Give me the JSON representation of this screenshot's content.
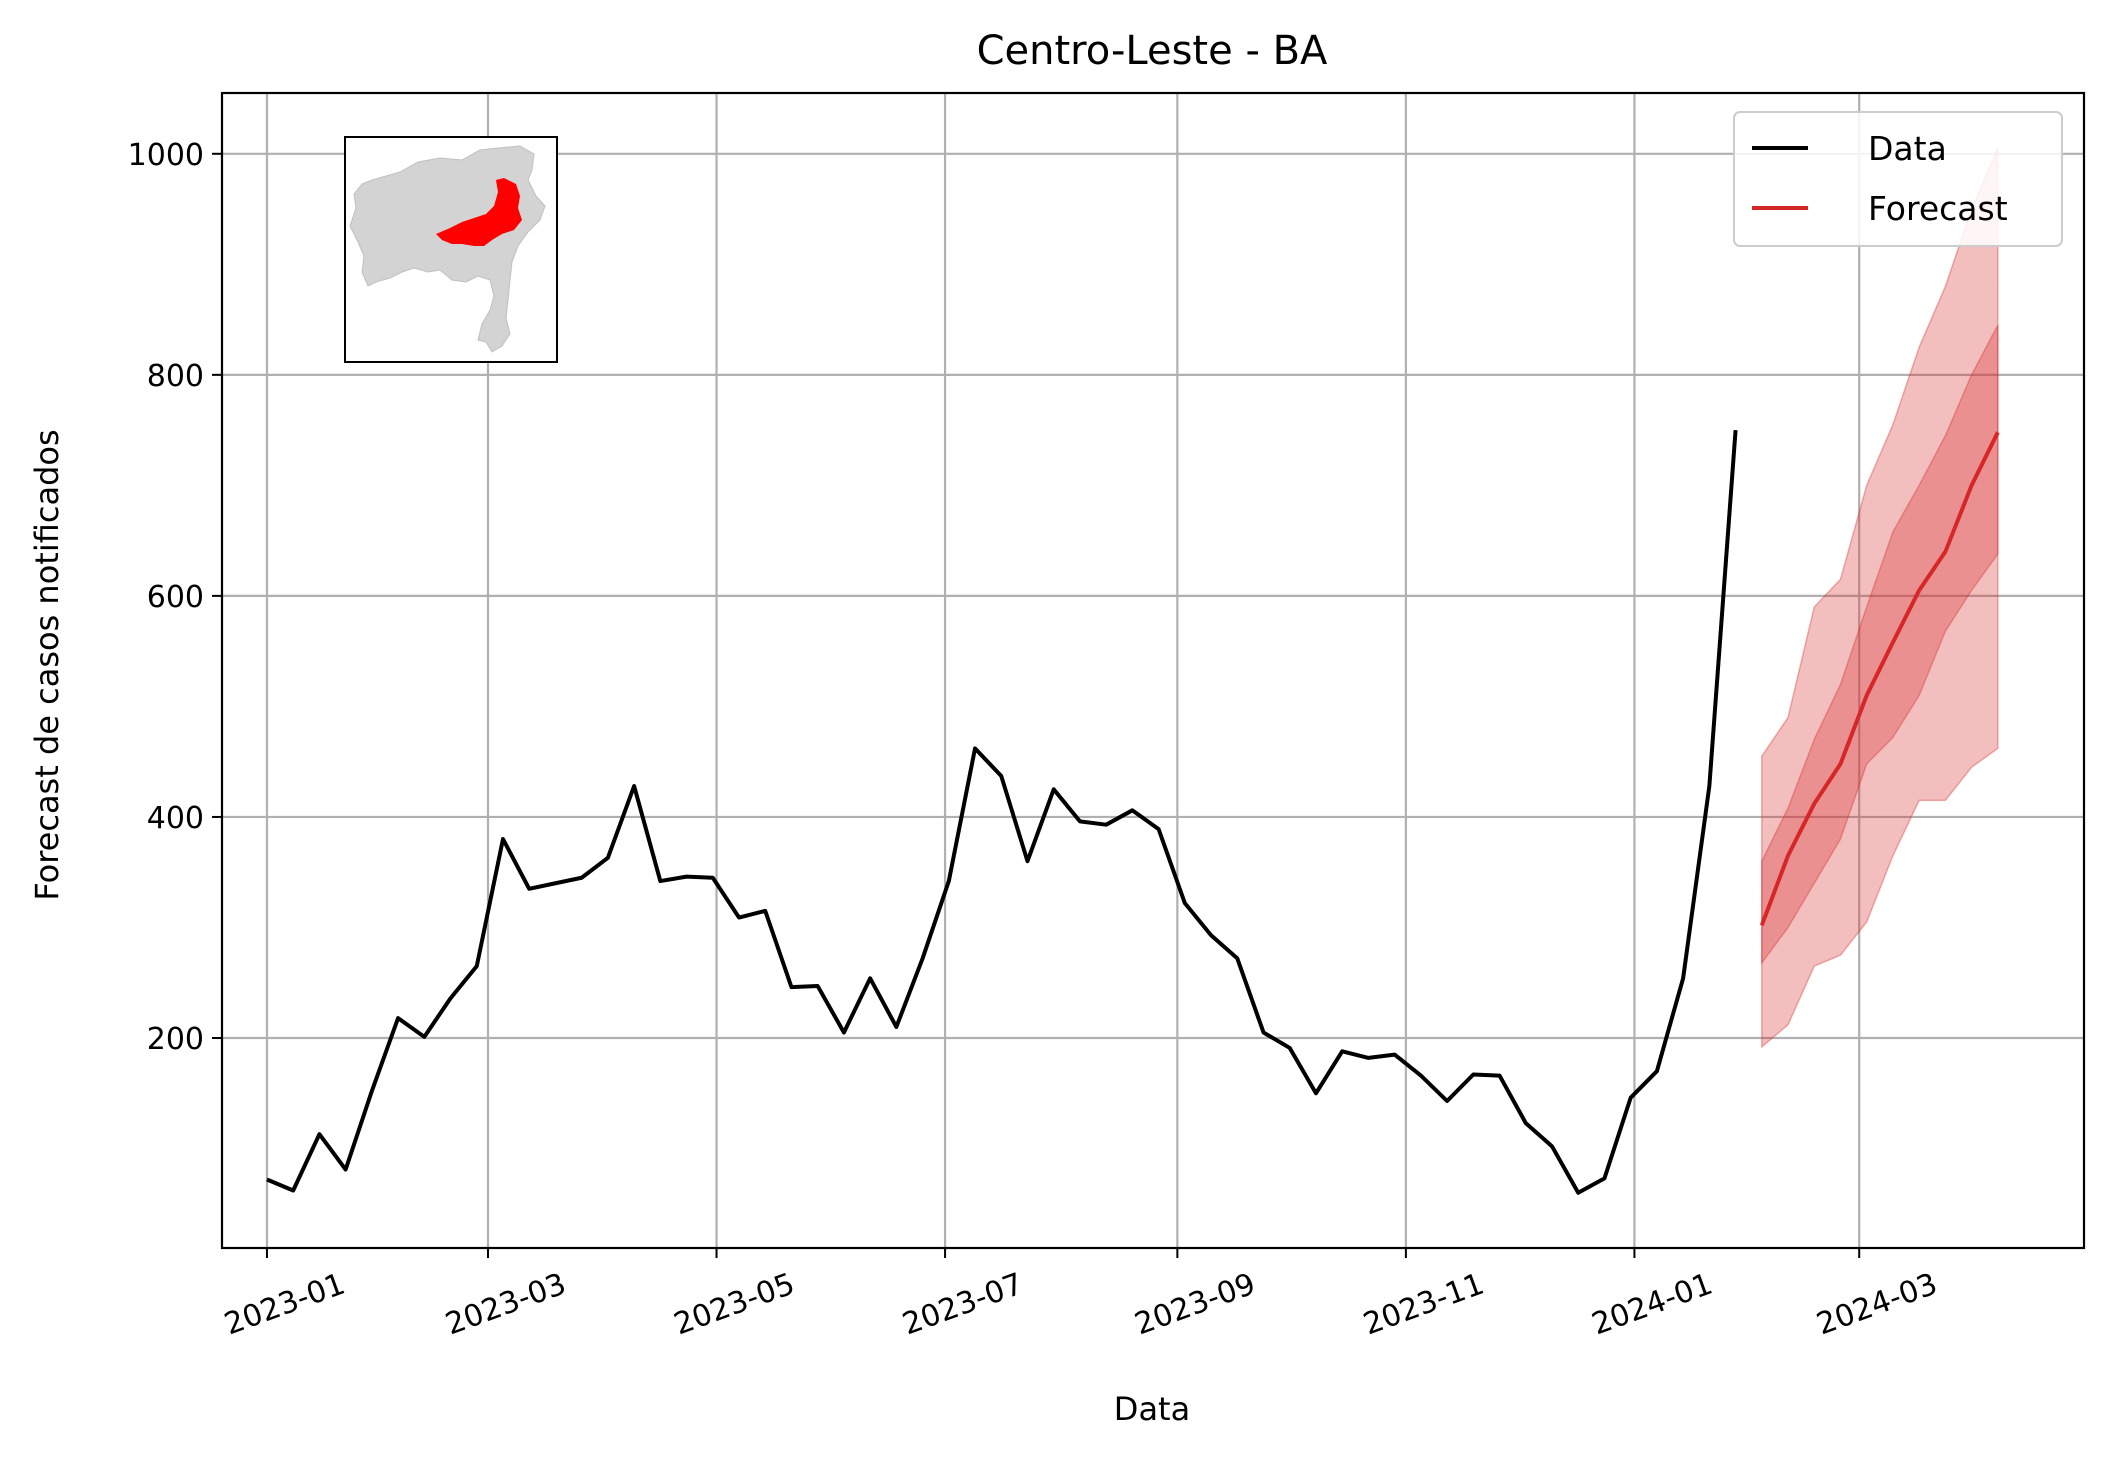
{
  "chart_data": {
    "type": "line",
    "title": "Centro-Leste - BA",
    "xlabel": "Data",
    "ylabel": "Forecast de casos notificados",
    "ylim": [
      10,
      1055
    ],
    "xlim": [
      "2022-12-20",
      "2024-04-30"
    ],
    "grid": true,
    "legend_position": "top-right",
    "x_ticks": [
      "2023-01-01",
      "2023-03-01",
      "2023-05-01",
      "2023-07-01",
      "2023-09-01",
      "2023-11-01",
      "2024-01-01",
      "2024-03-01"
    ],
    "x_tick_labels": [
      "2023-01",
      "2023-03",
      "2023-05",
      "2023-07",
      "2023-09",
      "2023-11",
      "2024-01",
      "2024-03"
    ],
    "y_ticks": [
      200,
      400,
      600,
      800,
      1000
    ],
    "y_tick_labels": [
      "200",
      "400",
      "600",
      "800",
      "1000"
    ],
    "series": [
      {
        "name": "Data",
        "color": "#000000",
        "x": [
          "2023-01-01",
          "2023-01-08",
          "2023-01-15",
          "2023-01-22",
          "2023-01-29",
          "2023-02-05",
          "2023-02-12",
          "2023-02-19",
          "2023-02-26",
          "2023-03-05",
          "2023-03-12",
          "2023-03-19",
          "2023-03-26",
          "2023-04-02",
          "2023-04-09",
          "2023-04-16",
          "2023-04-23",
          "2023-04-30",
          "2023-05-07",
          "2023-05-14",
          "2023-05-21",
          "2023-05-28",
          "2023-06-04",
          "2023-06-11",
          "2023-06-18",
          "2023-06-25",
          "2023-07-02",
          "2023-07-09",
          "2023-07-16",
          "2023-07-23",
          "2023-07-30",
          "2023-08-06",
          "2023-08-13",
          "2023-08-20",
          "2023-08-27",
          "2023-09-03",
          "2023-09-10",
          "2023-09-17",
          "2023-09-24",
          "2023-10-01",
          "2023-10-08",
          "2023-10-15",
          "2023-10-22",
          "2023-10-29",
          "2023-11-05",
          "2023-11-12",
          "2023-11-19",
          "2023-11-26",
          "2023-12-03",
          "2023-12-10",
          "2023-12-17",
          "2023-12-24",
          "2023-12-31",
          "2024-01-07",
          "2024-01-14",
          "2024-01-21",
          "2024-01-28"
        ],
        "y": [
          72,
          62,
          113,
          81,
          152,
          218,
          201,
          236,
          265,
          380,
          335,
          340,
          345,
          363,
          428,
          342,
          346,
          345,
          309,
          315,
          246,
          247,
          205,
          254,
          210,
          272,
          342,
          462,
          437,
          360,
          425,
          396,
          393,
          406,
          389,
          322,
          293,
          272,
          205,
          191,
          150,
          188,
          182,
          185,
          166,
          143,
          167,
          166,
          123,
          102,
          60,
          73,
          146,
          170,
          254,
          428,
          750
        ]
      },
      {
        "name": "Forecast",
        "color": "#d62728",
        "x": [
          "2024-02-04",
          "2024-02-11",
          "2024-02-18",
          "2024-02-25",
          "2024-03-03",
          "2024-03-10",
          "2024-03-17",
          "2024-03-24",
          "2024-03-31",
          "2024-04-07"
        ],
        "y": [
          302,
          365,
          412,
          448,
          510,
          558,
          605,
          640,
          700,
          748
        ],
        "band_inner_lower": [
          268,
          300,
          340,
          380,
          448,
          472,
          510,
          568,
          605,
          638
        ],
        "band_inner_upper": [
          360,
          408,
          470,
          520,
          590,
          658,
          700,
          745,
          800,
          845
        ],
        "band_outer_lower": [
          192,
          212,
          265,
          275,
          305,
          365,
          415,
          415,
          445,
          462
        ],
        "band_outer_upper": [
          455,
          490,
          590,
          615,
          700,
          755,
          825,
          880,
          950,
          1005
        ]
      }
    ],
    "inset": {
      "description_icon": "bahia-map-icon",
      "base_color": "#d3d3d3",
      "highlight_color": "#ff0000"
    }
  }
}
